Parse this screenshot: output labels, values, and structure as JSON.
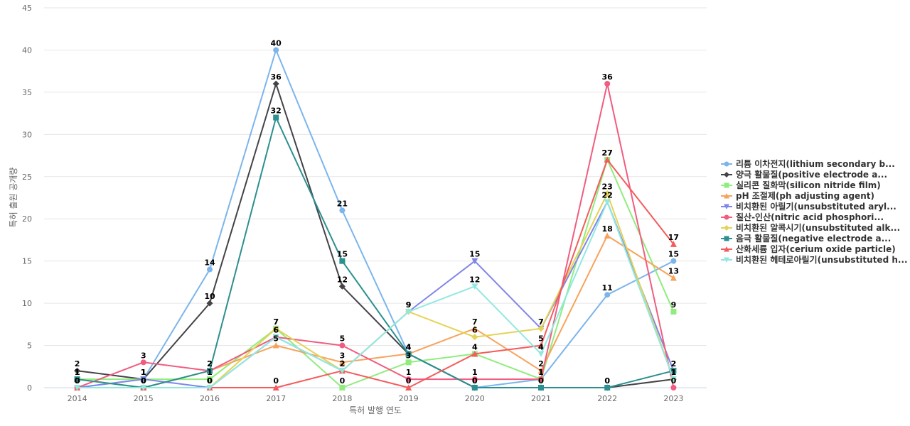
{
  "chart_data": {
    "type": "line",
    "title": "",
    "xlabel": "특허 발행 연도",
    "ylabel": "특허 출원 공개량",
    "ylim": [
      0,
      45
    ],
    "yticks": [
      0,
      5,
      10,
      15,
      20,
      25,
      30,
      35,
      40,
      45
    ],
    "grid": true,
    "legend_position": "right",
    "categories": [
      "2014",
      "2015",
      "2016",
      "2017",
      "2018",
      "2019",
      "2020",
      "2021",
      "2022",
      "2023"
    ],
    "series": [
      {
        "name": "리튬 이차전지(lithium secondary b...",
        "color": "#7cb5ec",
        "marker": "circle",
        "values": [
          0,
          1,
          14,
          40,
          21,
          4,
          0,
          1,
          11,
          15
        ]
      },
      {
        "name": "양극 활물질(positive electrode a...",
        "color": "#434348",
        "marker": "diamond",
        "values": [
          2,
          1,
          10,
          36,
          12,
          4,
          0,
          0,
          0,
          1
        ]
      },
      {
        "name": "실리콘 질화막(silicon nitride film)",
        "color": "#90ed7d",
        "marker": "square",
        "values": [
          1,
          1,
          1,
          7,
          0,
          3,
          4,
          1,
          27,
          9
        ]
      },
      {
        "name": "pH 조절제(ph adjusting agent)",
        "color": "#f7a35c",
        "marker": "triangle",
        "values": [
          1,
          0,
          2,
          5,
          3,
          4,
          7,
          2,
          18,
          13
        ]
      },
      {
        "name": "비치환된 아릴기(unsubstituted aryl...",
        "color": "#8085e9",
        "marker": "triangle-down",
        "values": [
          0,
          1,
          0,
          6,
          2,
          9,
          15,
          7,
          22,
          2
        ]
      },
      {
        "name": "질산-인산(nitric acid phosphori...",
        "color": "#f15c80",
        "marker": "circle",
        "values": [
          0,
          3,
          2,
          6,
          5,
          1,
          1,
          1,
          36,
          0
        ]
      },
      {
        "name": "비치환된 알콕시기(unsubstituted alk...",
        "color": "#e4d354",
        "marker": "diamond",
        "values": [
          1,
          0,
          0,
          7,
          2,
          9,
          6,
          7,
          23,
          1
        ]
      },
      {
        "name": "음극 활물질(negative electrode a...",
        "color": "#2b908f",
        "marker": "square",
        "values": [
          1,
          0,
          2,
          32,
          15,
          4,
          0,
          0,
          0,
          2
        ]
      },
      {
        "name": "산화세륨 입자(cerium oxide particle)",
        "color": "#f45b5b",
        "marker": "triangle",
        "values": [
          0,
          0,
          0,
          0,
          2,
          0,
          4,
          5,
          27,
          17
        ]
      },
      {
        "name": "비치환된 헤테로아릴기(unsubstituted h...",
        "color": "#91e8e1",
        "marker": "triangle-down",
        "values": [
          0,
          0,
          0,
          6,
          2,
          9,
          12,
          4,
          22,
          1
        ]
      }
    ]
  }
}
